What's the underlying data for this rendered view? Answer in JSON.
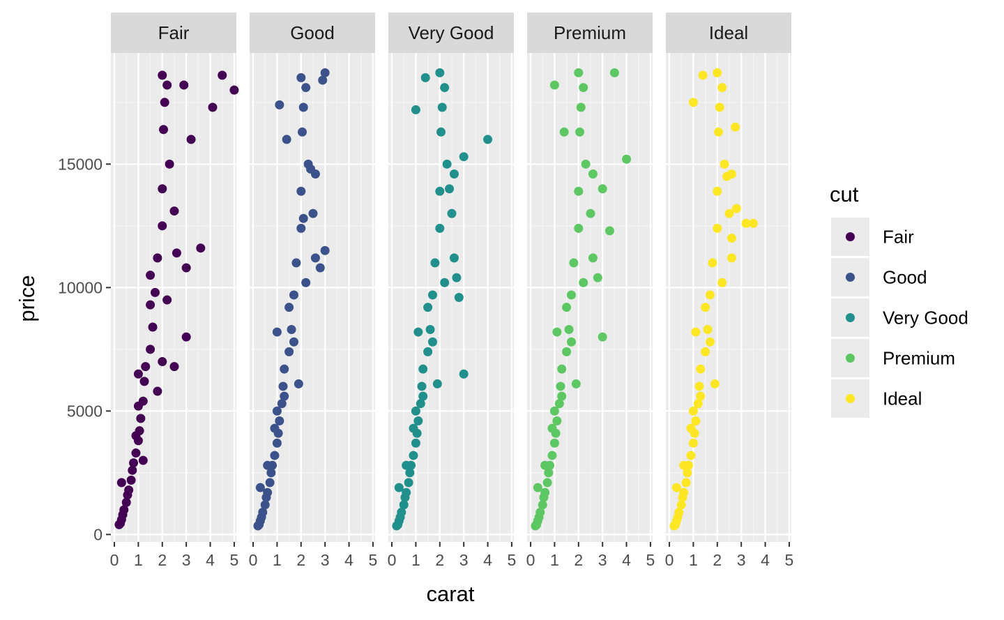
{
  "chart_data": {
    "type": "scatter",
    "facet_by": "cut",
    "xlabel": "carat",
    "ylabel": "price",
    "xlim": [
      0,
      5.2
    ],
    "ylim": [
      -300,
      19500
    ],
    "x_ticks": [
      0,
      1,
      2,
      3,
      4,
      5
    ],
    "x_tick_labels": [
      "0",
      "1",
      "2",
      "3",
      "4",
      "5"
    ],
    "y_ticks": [
      0,
      5000,
      10000,
      15000
    ],
    "y_tick_labels": [
      "0",
      "5000",
      "10000",
      "15000"
    ],
    "grid": true,
    "legend": {
      "title": "cut",
      "placement": "right",
      "entries": [
        "Fair",
        "Good",
        "Very Good",
        "Premium",
        "Ideal"
      ]
    },
    "series": [
      {
        "name": "Fair",
        "color": "#440154",
        "x": [
          0.2,
          0.25,
          0.3,
          0.35,
          0.4,
          0.5,
          0.55,
          0.6,
          0.7,
          0.75,
          0.8,
          0.9,
          1.0,
          1.0,
          1.05,
          1.1,
          1.2,
          1.25,
          1.3,
          1.5,
          1.5,
          1.6,
          1.7,
          1.8,
          2.0,
          2.0,
          2.0,
          2.05,
          2.1,
          2.2,
          2.3,
          2.5,
          2.6,
          3.0,
          3.0,
          3.2,
          3.6,
          4.1,
          4.5,
          5.0,
          1.0,
          1.5,
          2.0,
          2.5,
          0.3,
          0.9,
          1.2,
          1.8,
          2.2,
          2.9
        ],
        "y": [
          400,
          450,
          600,
          800,
          1000,
          1300,
          1600,
          1800,
          2200,
          2600,
          2900,
          3300,
          3800,
          5200,
          4200,
          4700,
          5400,
          6200,
          6800,
          7500,
          9300,
          8400,
          9800,
          11200,
          12500,
          14000,
          18600,
          16400,
          17500,
          18200,
          15000,
          13100,
          11400,
          10800,
          8000,
          16000,
          11600,
          17300,
          18600,
          18000,
          6500,
          10500,
          7000,
          6800,
          2100,
          4000,
          3000,
          5800,
          9500,
          18200
        ]
      },
      {
        "name": "Good",
        "color": "#3B528B",
        "x": [
          0.2,
          0.25,
          0.3,
          0.35,
          0.4,
          0.5,
          0.55,
          0.6,
          0.7,
          0.75,
          0.8,
          0.9,
          1.0,
          1.0,
          1.05,
          1.1,
          1.2,
          1.25,
          1.3,
          1.5,
          1.5,
          1.6,
          1.7,
          1.8,
          2.0,
          2.0,
          2.0,
          2.05,
          2.1,
          2.2,
          2.3,
          2.5,
          2.6,
          3.0,
          3.0,
          2.8,
          1.4,
          1.1,
          2.4,
          2.9,
          0.3,
          0.6,
          0.9,
          1.3,
          1.7,
          2.2,
          2.6,
          1.9,
          1.0,
          2.1
        ],
        "y": [
          350,
          400,
          550,
          700,
          900,
          1200,
          1500,
          1700,
          2100,
          2500,
          2800,
          3200,
          3700,
          5000,
          4100,
          4600,
          5300,
          6000,
          6700,
          7400,
          9200,
          8300,
          9700,
          11000,
          12400,
          13900,
          18500,
          16300,
          17300,
          18100,
          15000,
          13000,
          11200,
          18700,
          11500,
          10800,
          16000,
          17400,
          14800,
          18400,
          1900,
          2800,
          4300,
          5600,
          7800,
          10200,
          14600,
          6100,
          8200,
          12800
        ]
      },
      {
        "name": "Very Good",
        "color": "#21908C",
        "x": [
          0.2,
          0.25,
          0.3,
          0.35,
          0.4,
          0.5,
          0.55,
          0.6,
          0.7,
          0.75,
          0.8,
          0.9,
          1.0,
          1.0,
          1.05,
          1.1,
          1.2,
          1.25,
          1.3,
          1.5,
          1.5,
          1.6,
          1.7,
          1.8,
          2.0,
          2.0,
          2.0,
          2.05,
          2.1,
          2.2,
          2.3,
          2.5,
          2.6,
          3.0,
          3.0,
          4.0,
          2.7,
          1.0,
          1.4,
          2.4,
          0.3,
          0.6,
          0.9,
          1.3,
          1.7,
          2.2,
          2.6,
          1.9,
          1.1,
          2.8
        ],
        "y": [
          350,
          400,
          550,
          700,
          900,
          1200,
          1500,
          1700,
          2100,
          2500,
          2800,
          3200,
          3700,
          5000,
          4100,
          4600,
          5300,
          6000,
          6700,
          7400,
          9200,
          8300,
          9700,
          11000,
          12400,
          13900,
          18700,
          16300,
          17300,
          18100,
          15000,
          13000,
          11200,
          15300,
          6500,
          16000,
          10400,
          17200,
          18500,
          14000,
          1900,
          2800,
          4300,
          5600,
          7800,
          10200,
          14600,
          6100,
          8200,
          9600
        ]
      },
      {
        "name": "Premium",
        "color": "#5DC863",
        "x": [
          0.2,
          0.25,
          0.3,
          0.35,
          0.4,
          0.5,
          0.55,
          0.6,
          0.7,
          0.75,
          0.8,
          0.9,
          1.0,
          1.0,
          1.05,
          1.1,
          1.2,
          1.25,
          1.3,
          1.5,
          1.5,
          1.6,
          1.7,
          1.8,
          2.0,
          2.0,
          2.0,
          2.05,
          2.1,
          2.2,
          2.3,
          2.5,
          2.6,
          3.0,
          3.0,
          4.0,
          3.5,
          3.3,
          1.0,
          1.4,
          0.3,
          0.6,
          0.9,
          1.3,
          1.7,
          2.2,
          2.6,
          1.9,
          1.1,
          2.8
        ],
        "y": [
          350,
          400,
          550,
          700,
          900,
          1200,
          1500,
          1700,
          2100,
          2500,
          2800,
          3200,
          3700,
          5000,
          4100,
          4600,
          5300,
          6000,
          6700,
          7400,
          9200,
          8300,
          9700,
          11000,
          12400,
          13900,
          18700,
          16300,
          17300,
          18100,
          15000,
          13000,
          11200,
          14000,
          8000,
          15200,
          18700,
          12300,
          18200,
          16300,
          1900,
          2800,
          4300,
          5600,
          7800,
          10200,
          14600,
          6100,
          8200,
          10400
        ]
      },
      {
        "name": "Ideal",
        "color": "#FDE725",
        "x": [
          0.2,
          0.25,
          0.3,
          0.35,
          0.4,
          0.5,
          0.55,
          0.6,
          0.7,
          0.75,
          0.8,
          0.9,
          1.0,
          1.0,
          1.05,
          1.1,
          1.2,
          1.25,
          1.3,
          1.5,
          1.5,
          1.6,
          1.7,
          1.8,
          2.0,
          2.0,
          2.0,
          2.05,
          2.1,
          2.2,
          2.3,
          2.5,
          2.6,
          3.2,
          3.5,
          2.75,
          2.6,
          1.0,
          1.4,
          2.4,
          0.3,
          0.6,
          0.9,
          1.3,
          1.7,
          2.2,
          2.6,
          1.9,
          1.1,
          2.8
        ],
        "y": [
          350,
          400,
          550,
          700,
          900,
          1200,
          1500,
          1700,
          2100,
          2500,
          2800,
          3200,
          3700,
          5000,
          4100,
          4600,
          5300,
          6000,
          6700,
          7400,
          9200,
          8300,
          9700,
          11000,
          12400,
          13900,
          18700,
          16300,
          17300,
          18100,
          15000,
          13000,
          11200,
          12600,
          12600,
          16500,
          12000,
          17500,
          18600,
          14500,
          1900,
          2800,
          4300,
          5600,
          7800,
          10200,
          14600,
          6100,
          8200,
          13200
        ]
      }
    ]
  }
}
